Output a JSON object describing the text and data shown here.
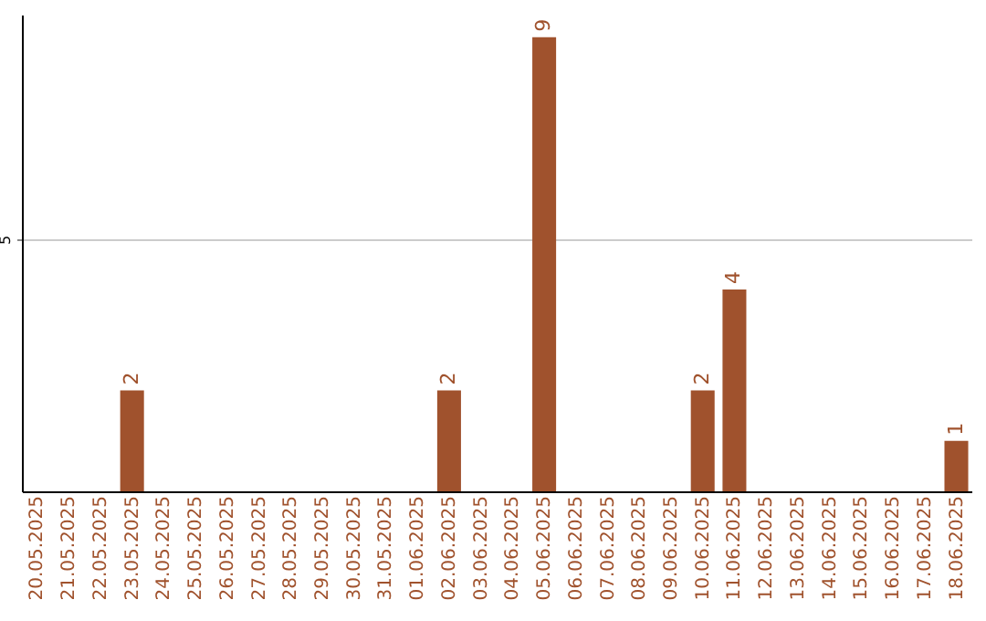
{
  "chart_data": {
    "type": "bar",
    "categories": [
      "20.05.2025",
      "21.05.2025",
      "22.05.2025",
      "23.05.2025",
      "24.05.2025",
      "25.05.2025",
      "26.05.2025",
      "27.05.2025",
      "28.05.2025",
      "29.05.2025",
      "30.05.2025",
      "31.05.2025",
      "01.06.2025",
      "02.06.2025",
      "03.06.2025",
      "04.06.2025",
      "05.06.2025",
      "06.06.2025",
      "07.06.2025",
      "08.06.2025",
      "09.06.2025",
      "10.06.2025",
      "11.06.2025",
      "12.06.2025",
      "13.06.2025",
      "14.06.2025",
      "15.06.2025",
      "16.06.2025",
      "17.06.2025",
      "18.06.2025"
    ],
    "values": [
      0,
      0,
      0,
      2,
      0,
      0,
      0,
      0,
      0,
      0,
      0,
      0,
      0,
      2,
      0,
      0,
      9,
      0,
      0,
      0,
      0,
      2,
      4,
      0,
      0,
      0,
      0,
      0,
      0,
      1
    ],
    "value_labels": [
      null,
      null,
      null,
      "2",
      null,
      null,
      null,
      null,
      null,
      null,
      null,
      null,
      null,
      "2",
      null,
      null,
      "9",
      null,
      null,
      null,
      null,
      "2",
      "4",
      null,
      null,
      null,
      null,
      null,
      null,
      "1"
    ],
    "color": "#a0522d",
    "ylim": [
      0,
      9.45
    ],
    "yticks": [
      5
    ],
    "grid": "y"
  }
}
